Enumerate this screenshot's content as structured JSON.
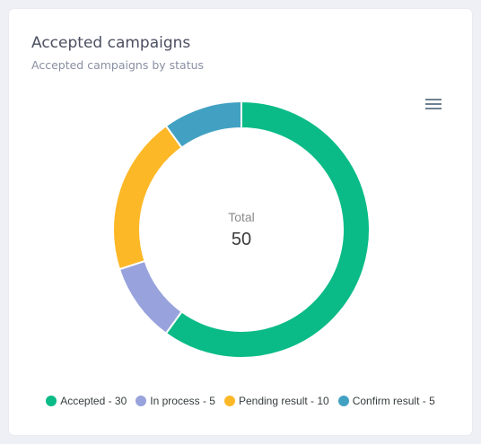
{
  "card": {
    "title": "Accepted campaigns",
    "subtitle": "Accepted campaigns by status",
    "menu_icon": "hamburger-menu-icon"
  },
  "chart_data": {
    "type": "donut",
    "title": "Accepted campaigns",
    "subtitle": "Accepted campaigns by status",
    "total_label": "Total",
    "total_value": "50",
    "legend_position": "bottom",
    "series": [
      {
        "name": "Accepted",
        "value": 30,
        "color": "#0abb87",
        "legend": "Accepted - 30"
      },
      {
        "name": "In process",
        "value": 5,
        "color": "#98a3dd",
        "legend": "In process - 5"
      },
      {
        "name": "Pending result",
        "value": 10,
        "color": "#fdb827",
        "legend": "Pending result - 10"
      },
      {
        "name": "Confirm result",
        "value": 5,
        "color": "#42a1c2",
        "legend": "Confirm result - 5"
      }
    ]
  }
}
